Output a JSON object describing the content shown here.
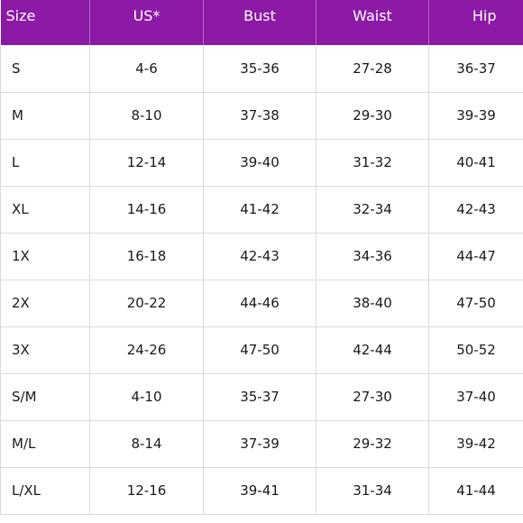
{
  "colors": {
    "header_bg": "#8c1aa6",
    "header_text": "#ffffff",
    "grid_line": "#dadada",
    "cell_text": "#1a1a1a"
  },
  "table": {
    "headers": [
      "Size",
      "US*",
      "Bust",
      "Waist",
      "Hip"
    ],
    "rows": [
      [
        "S",
        "4-6",
        "35-36",
        "27-28",
        "36-37"
      ],
      [
        "M",
        "8-10",
        "37-38",
        "29-30",
        "39-39"
      ],
      [
        "L",
        "12-14",
        "39-40",
        "31-32",
        "40-41"
      ],
      [
        "XL",
        "14-16",
        "41-42",
        "32-34",
        "42-43"
      ],
      [
        "1X",
        "16-18",
        "42-43",
        "34-36",
        "44-47"
      ],
      [
        "2X",
        "20-22",
        "44-46",
        "38-40",
        "47-50"
      ],
      [
        "3X",
        "24-26",
        "47-50",
        "42-44",
        "50-52"
      ],
      [
        "S/M",
        "4-10",
        "35-37",
        "27-30",
        "37-40"
      ],
      [
        "M/L",
        "8-14",
        "37-39",
        "29-32",
        "39-42"
      ],
      [
        "L/XL",
        "12-16",
        "39-41",
        "31-34",
        "41-44"
      ]
    ]
  }
}
